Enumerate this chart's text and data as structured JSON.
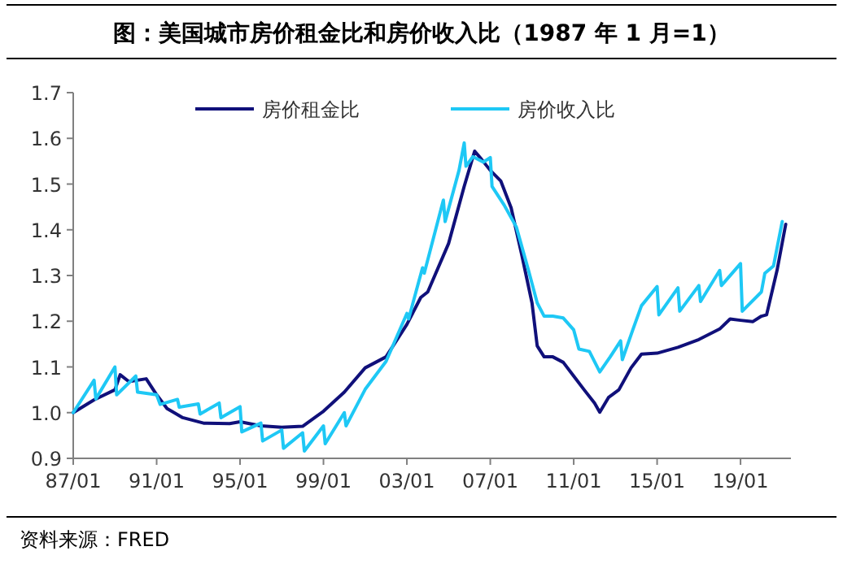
{
  "chart_data": {
    "type": "line",
    "title": "图：美国城市房价租金比和房价收入比（1987 年 1 月=1）",
    "annotations": [
      "资料来源：FRED"
    ],
    "legend": "top",
    "grid": false,
    "marker": "none",
    "line_style": "solid",
    "xlim": [
      "1987-01",
      "2021-06"
    ],
    "xticks": [
      {
        "value": "1987-01",
        "label": "87/01"
      },
      {
        "value": "1991-01",
        "label": "91/01"
      },
      {
        "value": "1995-01",
        "label": "95/01"
      },
      {
        "value": "1999-01",
        "label": "99/01"
      },
      {
        "value": "2003-01",
        "label": "03/01"
      },
      {
        "value": "2007-01",
        "label": "07/01"
      },
      {
        "value": "2011-01",
        "label": "11/01"
      },
      {
        "value": "2015-01",
        "label": "15/01"
      },
      {
        "value": "2019-01",
        "label": "19/01"
      }
    ],
    "ylim": [
      0.9,
      1.7
    ],
    "yticks": [
      {
        "value": 0.9,
        "label": "0.9"
      },
      {
        "value": 1,
        "label": "1.0"
      },
      {
        "value": 1.1,
        "label": "1.1"
      },
      {
        "value": 1.2,
        "label": "1.2"
      },
      {
        "value": 1.3,
        "label": "1.3"
      },
      {
        "value": 1.4,
        "label": "1.4"
      },
      {
        "value": 1.5,
        "label": "1.5"
      },
      {
        "value": 1.6,
        "label": "1.6"
      },
      {
        "value": 1.7,
        "label": "1.7"
      }
    ],
    "series": [
      {
        "name": "房价租金比",
        "color": "#10107a",
        "x": [
          "1987-01",
          "1988-01",
          "1989-01",
          "1989-04",
          "1989-09",
          "1990-07",
          "1991-01",
          "1991-07",
          "1992-04",
          "1993-04",
          "1994-07",
          "1995-01",
          "1996-01",
          "1997-01",
          "1998-01",
          "1999-01",
          "2000-01",
          "2001-01",
          "2002-01",
          "2003-01",
          "2003-09",
          "2004-01",
          "2005-01",
          "2005-10",
          "2006-04",
          "2006-08",
          "2007-01",
          "2007-07",
          "2008-01",
          "2008-07",
          "2009-01",
          "2009-04",
          "2009-08",
          "2010-01",
          "2010-07",
          "2011-01",
          "2011-07",
          "2012-01",
          "2012-04",
          "2012-09",
          "2013-03",
          "2013-10",
          "2014-04",
          "2015-01",
          "2016-01",
          "2017-01",
          "2018-01",
          "2018-07",
          "2019-01",
          "2019-08",
          "2020-01",
          "2020-04",
          "2020-10",
          "2021-03"
        ],
        "values": [
          1.0,
          1.028,
          1.05,
          1.083,
          1.068,
          1.074,
          1.039,
          1.009,
          0.989,
          0.977,
          0.976,
          0.98,
          0.971,
          0.968,
          0.97,
          1.003,
          1.045,
          1.098,
          1.122,
          1.193,
          1.252,
          1.264,
          1.37,
          1.495,
          1.572,
          1.554,
          1.53,
          1.507,
          1.448,
          1.347,
          1.24,
          1.146,
          1.122,
          1.122,
          1.11,
          1.08,
          1.05,
          1.021,
          1.001,
          1.033,
          1.05,
          1.098,
          1.128,
          1.13,
          1.143,
          1.16,
          1.183,
          1.205,
          1.202,
          1.199,
          1.211,
          1.214,
          1.311,
          1.412
        ]
      },
      {
        "name": "房价收入比",
        "color": "#1ec8f5",
        "x": [
          "1987-01",
          "1988-01",
          "1988-02",
          "1989-01",
          "1989-02",
          "1990-01",
          "1990-02",
          "1991-01",
          "1991-03",
          "1992-01",
          "1992-02",
          "1993-01",
          "1993-02",
          "1994-01",
          "1994-02",
          "1995-01",
          "1995-02",
          "1996-01",
          "1996-02",
          "1997-01",
          "1997-02",
          "1998-01",
          "1998-02",
          "1999-01",
          "1999-02",
          "2000-01",
          "2000-02",
          "2001-01",
          "2002-01",
          "2003-01",
          "2003-02",
          "2003-10",
          "2003-11",
          "2004-10",
          "2004-11",
          "2005-07",
          "2005-10",
          "2005-11",
          "2006-03",
          "2006-09",
          "2007-01",
          "2007-02",
          "2007-09",
          "2008-04",
          "2008-11",
          "2009-04",
          "2009-08",
          "2010-01",
          "2010-07",
          "2011-01",
          "2011-04",
          "2011-10",
          "2012-04",
          "2012-10",
          "2013-04",
          "2013-05",
          "2013-11",
          "2014-04",
          "2015-01",
          "2015-02",
          "2016-01",
          "2016-02",
          "2017-01",
          "2017-02",
          "2018-01",
          "2018-02",
          "2019-01",
          "2019-02",
          "2020-01",
          "2020-03",
          "2020-08",
          "2021-01"
        ],
        "values": [
          1.0,
          1.071,
          1.03,
          1.1,
          1.039,
          1.08,
          1.045,
          1.039,
          1.018,
          1.029,
          1.012,
          1.019,
          0.997,
          1.021,
          0.989,
          1.013,
          0.958,
          0.977,
          0.938,
          0.962,
          0.922,
          0.956,
          0.916,
          0.971,
          0.932,
          1.0,
          0.971,
          1.051,
          1.112,
          1.217,
          1.205,
          1.317,
          1.305,
          1.465,
          1.418,
          1.53,
          1.59,
          1.539,
          1.56,
          1.548,
          1.558,
          1.495,
          1.454,
          1.406,
          1.311,
          1.24,
          1.211,
          1.211,
          1.207,
          1.181,
          1.139,
          1.134,
          1.089,
          1.122,
          1.157,
          1.116,
          1.181,
          1.234,
          1.276,
          1.214,
          1.273,
          1.222,
          1.278,
          1.243,
          1.311,
          1.278,
          1.326,
          1.222,
          1.264,
          1.305,
          1.321,
          1.418
        ]
      }
    ]
  }
}
